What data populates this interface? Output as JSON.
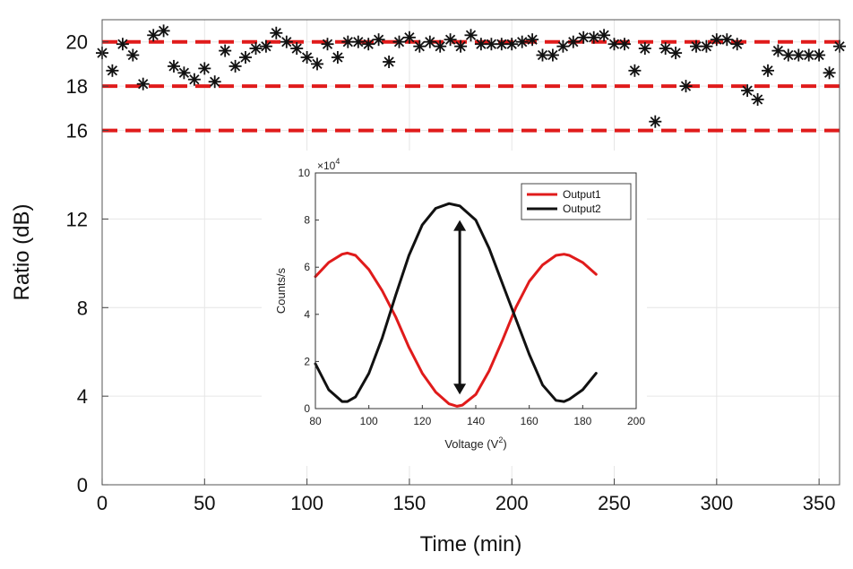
{
  "chart_data": [
    {
      "id": "main",
      "type": "scatter",
      "title": "",
      "xlabel": "Time (min)",
      "ylabel": "Ratio (dB)",
      "xlim": [
        0,
        360
      ],
      "ylim": [
        0,
        21
      ],
      "xticks": [
        0,
        50,
        100,
        150,
        200,
        250,
        300,
        350
      ],
      "yticks": [
        0,
        4,
        8,
        12,
        16,
        18,
        20
      ],
      "grid": true,
      "marker": "asterisk",
      "reference_lines": [
        {
          "y": 20,
          "color": "#e01b1b",
          "style": "dashed"
        },
        {
          "y": 18,
          "color": "#e01b1b",
          "style": "dashed"
        },
        {
          "y": 16,
          "color": "#e01b1b",
          "style": "dashed"
        }
      ],
      "series": [
        {
          "name": "ratio",
          "color": "#111111",
          "x": [
            0,
            5,
            10,
            15,
            20,
            25,
            30,
            35,
            40,
            45,
            50,
            55,
            60,
            65,
            70,
            75,
            80,
            85,
            90,
            95,
            100,
            105,
            110,
            115,
            120,
            125,
            130,
            135,
            140,
            145,
            150,
            155,
            160,
            165,
            170,
            175,
            180,
            185,
            190,
            195,
            200,
            205,
            210,
            215,
            220,
            225,
            230,
            235,
            240,
            245,
            250,
            255,
            260,
            265,
            270,
            275,
            280,
            285,
            290,
            295,
            300,
            305,
            310,
            315,
            320,
            325,
            330,
            335,
            340,
            345,
            350,
            355,
            360
          ],
          "y": [
            19.5,
            18.7,
            19.9,
            19.4,
            18.1,
            20.3,
            20.5,
            18.9,
            18.6,
            18.3,
            18.8,
            18.2,
            19.6,
            18.9,
            19.3,
            19.7,
            19.8,
            20.4,
            20.0,
            19.7,
            19.3,
            19.0,
            19.9,
            19.3,
            20.0,
            20.0,
            19.9,
            20.1,
            19.1,
            20.0,
            20.2,
            19.8,
            20.0,
            19.8,
            20.1,
            19.8,
            20.3,
            19.9,
            19.9,
            19.9,
            19.9,
            20.0,
            20.1,
            19.4,
            19.4,
            19.8,
            20.0,
            20.2,
            20.2,
            20.3,
            19.9,
            19.9,
            18.7,
            19.7,
            16.4,
            19.7,
            19.5,
            18.0,
            19.8,
            19.8,
            20.1,
            20.1,
            19.9,
            17.8,
            17.4,
            18.7,
            19.6,
            19.4,
            19.4,
            19.4,
            19.4,
            18.6,
            19.8
          ]
        }
      ]
    },
    {
      "id": "inset",
      "type": "line",
      "title": "",
      "xlabel": "Voltage (V",
      "xlabel_superscript": "2",
      "xlabel_suffix": ")",
      "ylabel": "Counts/s",
      "y_multiplier": "×10",
      "y_multiplier_exp": "4",
      "xlim": [
        80,
        200
      ],
      "ylim": [
        0,
        10
      ],
      "xticks": [
        80,
        100,
        120,
        140,
        160,
        180,
        200
      ],
      "yticks": [
        0,
        2,
        4,
        6,
        8,
        10
      ],
      "grid": false,
      "legend": "top-right",
      "arrow": {
        "x": 134,
        "y_from": 0.6,
        "y_to": 8.0,
        "color": "#111111"
      },
      "series": [
        {
          "name": "Output1",
          "color": "#e01b1b",
          "x": [
            80,
            85,
            90,
            92,
            95,
            100,
            105,
            110,
            115,
            120,
            125,
            130,
            133,
            135,
            140,
            145,
            150,
            155,
            160,
            165,
            170,
            173,
            175,
            180,
            185
          ],
          "y": [
            5.6,
            6.2,
            6.55,
            6.6,
            6.5,
            5.9,
            5.0,
            3.9,
            2.6,
            1.5,
            0.7,
            0.2,
            0.1,
            0.15,
            0.6,
            1.6,
            2.9,
            4.3,
            5.4,
            6.1,
            6.5,
            6.55,
            6.5,
            6.2,
            5.7
          ]
        },
        {
          "name": "Output2",
          "color": "#111111",
          "x": [
            80,
            85,
            90,
            92,
            95,
            100,
            105,
            110,
            115,
            120,
            125,
            130,
            134,
            140,
            145,
            150,
            155,
            160,
            165,
            170,
            173,
            175,
            180,
            185
          ],
          "y": [
            1.9,
            0.8,
            0.3,
            0.3,
            0.5,
            1.5,
            3.0,
            4.8,
            6.5,
            7.8,
            8.5,
            8.7,
            8.6,
            8.0,
            6.8,
            5.3,
            3.8,
            2.3,
            1.0,
            0.35,
            0.3,
            0.4,
            0.8,
            1.5
          ]
        }
      ]
    }
  ]
}
